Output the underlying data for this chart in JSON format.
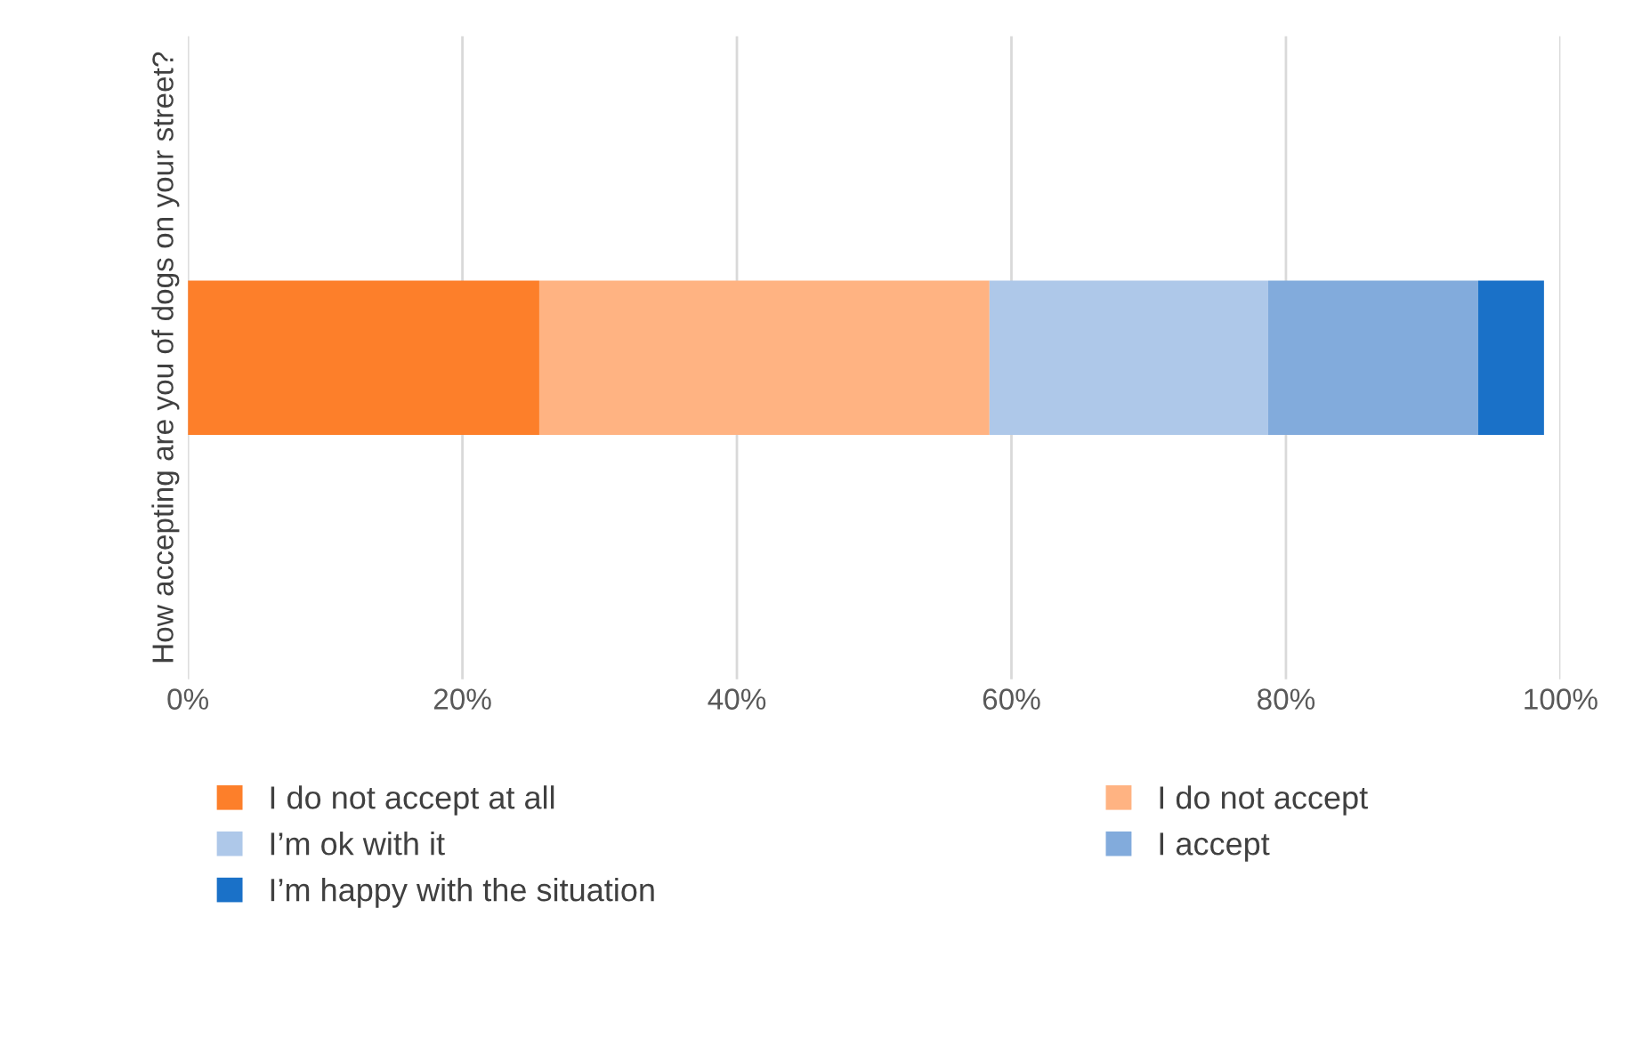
{
  "chart_data": {
    "type": "bar",
    "orientation": "horizontal",
    "stacked": true,
    "categories": [
      "How accepting are you of dogs on your street?"
    ],
    "series": [
      {
        "name": "I do not accept at all",
        "color": "#fd7f2a",
        "values": [
          25.6
        ]
      },
      {
        "name": "I do not accept",
        "color": "#ffb382",
        "values": [
          32.8
        ]
      },
      {
        "name": "I’m ok with it",
        "color": "#aec8e9",
        "values": [
          20.3
        ]
      },
      {
        "name": "I accept",
        "color": "#82abdc",
        "values": [
          15.3
        ]
      },
      {
        "name": "I’m happy with the situation",
        "color": "#1a71c8",
        "values": [
          4.8
        ]
      }
    ],
    "xlim": [
      0,
      100
    ],
    "xticks": [
      {
        "value": 0,
        "label": "0%"
      },
      {
        "value": 20,
        "label": "20%"
      },
      {
        "value": 40,
        "label": "40%"
      },
      {
        "value": 60,
        "label": "60%"
      },
      {
        "value": 80,
        "label": "80%"
      },
      {
        "value": 100,
        "label": "100%"
      }
    ],
    "grid": "x",
    "legend": "bottom"
  }
}
